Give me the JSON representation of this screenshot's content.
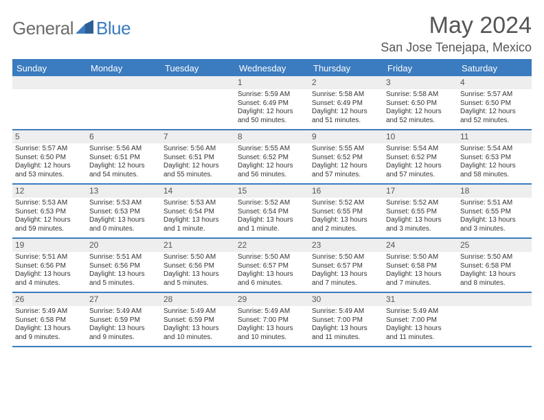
{
  "brand": {
    "part1": "General",
    "part2": "Blue"
  },
  "title": "May 2024",
  "location": "San Jose Tenejapa, Mexico",
  "colors": {
    "accent": "#3b7bbf",
    "header_bg": "#3b7bbf",
    "daynum_bg": "#eeeeee",
    "text": "#333333",
    "title_text": "#555555",
    "page_bg": "#ffffff"
  },
  "typography": {
    "title_fontsize": 34,
    "location_fontsize": 18,
    "weekday_fontsize": 13,
    "daynum_fontsize": 12,
    "body_fontsize": 10,
    "font_family": "Arial"
  },
  "weekdays": [
    "Sunday",
    "Monday",
    "Tuesday",
    "Wednesday",
    "Thursday",
    "Friday",
    "Saturday"
  ],
  "weeks": [
    [
      {
        "n": "",
        "empty": true
      },
      {
        "n": "",
        "empty": true
      },
      {
        "n": "",
        "empty": true
      },
      {
        "n": "1",
        "sr": "Sunrise: 5:59 AM",
        "ss": "Sunset: 6:49 PM",
        "d1": "Daylight: 12 hours",
        "d2": "and 50 minutes."
      },
      {
        "n": "2",
        "sr": "Sunrise: 5:58 AM",
        "ss": "Sunset: 6:49 PM",
        "d1": "Daylight: 12 hours",
        "d2": "and 51 minutes."
      },
      {
        "n": "3",
        "sr": "Sunrise: 5:58 AM",
        "ss": "Sunset: 6:50 PM",
        "d1": "Daylight: 12 hours",
        "d2": "and 52 minutes."
      },
      {
        "n": "4",
        "sr": "Sunrise: 5:57 AM",
        "ss": "Sunset: 6:50 PM",
        "d1": "Daylight: 12 hours",
        "d2": "and 52 minutes."
      }
    ],
    [
      {
        "n": "5",
        "sr": "Sunrise: 5:57 AM",
        "ss": "Sunset: 6:50 PM",
        "d1": "Daylight: 12 hours",
        "d2": "and 53 minutes."
      },
      {
        "n": "6",
        "sr": "Sunrise: 5:56 AM",
        "ss": "Sunset: 6:51 PM",
        "d1": "Daylight: 12 hours",
        "d2": "and 54 minutes."
      },
      {
        "n": "7",
        "sr": "Sunrise: 5:56 AM",
        "ss": "Sunset: 6:51 PM",
        "d1": "Daylight: 12 hours",
        "d2": "and 55 minutes."
      },
      {
        "n": "8",
        "sr": "Sunrise: 5:55 AM",
        "ss": "Sunset: 6:52 PM",
        "d1": "Daylight: 12 hours",
        "d2": "and 56 minutes."
      },
      {
        "n": "9",
        "sr": "Sunrise: 5:55 AM",
        "ss": "Sunset: 6:52 PM",
        "d1": "Daylight: 12 hours",
        "d2": "and 57 minutes."
      },
      {
        "n": "10",
        "sr": "Sunrise: 5:54 AM",
        "ss": "Sunset: 6:52 PM",
        "d1": "Daylight: 12 hours",
        "d2": "and 57 minutes."
      },
      {
        "n": "11",
        "sr": "Sunrise: 5:54 AM",
        "ss": "Sunset: 6:53 PM",
        "d1": "Daylight: 12 hours",
        "d2": "and 58 minutes."
      }
    ],
    [
      {
        "n": "12",
        "sr": "Sunrise: 5:53 AM",
        "ss": "Sunset: 6:53 PM",
        "d1": "Daylight: 12 hours",
        "d2": "and 59 minutes."
      },
      {
        "n": "13",
        "sr": "Sunrise: 5:53 AM",
        "ss": "Sunset: 6:53 PM",
        "d1": "Daylight: 13 hours",
        "d2": "and 0 minutes."
      },
      {
        "n": "14",
        "sr": "Sunrise: 5:53 AM",
        "ss": "Sunset: 6:54 PM",
        "d1": "Daylight: 13 hours",
        "d2": "and 1 minute."
      },
      {
        "n": "15",
        "sr": "Sunrise: 5:52 AM",
        "ss": "Sunset: 6:54 PM",
        "d1": "Daylight: 13 hours",
        "d2": "and 1 minute."
      },
      {
        "n": "16",
        "sr": "Sunrise: 5:52 AM",
        "ss": "Sunset: 6:55 PM",
        "d1": "Daylight: 13 hours",
        "d2": "and 2 minutes."
      },
      {
        "n": "17",
        "sr": "Sunrise: 5:52 AM",
        "ss": "Sunset: 6:55 PM",
        "d1": "Daylight: 13 hours",
        "d2": "and 3 minutes."
      },
      {
        "n": "18",
        "sr": "Sunrise: 5:51 AM",
        "ss": "Sunset: 6:55 PM",
        "d1": "Daylight: 13 hours",
        "d2": "and 3 minutes."
      }
    ],
    [
      {
        "n": "19",
        "sr": "Sunrise: 5:51 AM",
        "ss": "Sunset: 6:56 PM",
        "d1": "Daylight: 13 hours",
        "d2": "and 4 minutes."
      },
      {
        "n": "20",
        "sr": "Sunrise: 5:51 AM",
        "ss": "Sunset: 6:56 PM",
        "d1": "Daylight: 13 hours",
        "d2": "and 5 minutes."
      },
      {
        "n": "21",
        "sr": "Sunrise: 5:50 AM",
        "ss": "Sunset: 6:56 PM",
        "d1": "Daylight: 13 hours",
        "d2": "and 5 minutes."
      },
      {
        "n": "22",
        "sr": "Sunrise: 5:50 AM",
        "ss": "Sunset: 6:57 PM",
        "d1": "Daylight: 13 hours",
        "d2": "and 6 minutes."
      },
      {
        "n": "23",
        "sr": "Sunrise: 5:50 AM",
        "ss": "Sunset: 6:57 PM",
        "d1": "Daylight: 13 hours",
        "d2": "and 7 minutes."
      },
      {
        "n": "24",
        "sr": "Sunrise: 5:50 AM",
        "ss": "Sunset: 6:58 PM",
        "d1": "Daylight: 13 hours",
        "d2": "and 7 minutes."
      },
      {
        "n": "25",
        "sr": "Sunrise: 5:50 AM",
        "ss": "Sunset: 6:58 PM",
        "d1": "Daylight: 13 hours",
        "d2": "and 8 minutes."
      }
    ],
    [
      {
        "n": "26",
        "sr": "Sunrise: 5:49 AM",
        "ss": "Sunset: 6:58 PM",
        "d1": "Daylight: 13 hours",
        "d2": "and 9 minutes."
      },
      {
        "n": "27",
        "sr": "Sunrise: 5:49 AM",
        "ss": "Sunset: 6:59 PM",
        "d1": "Daylight: 13 hours",
        "d2": "and 9 minutes."
      },
      {
        "n": "28",
        "sr": "Sunrise: 5:49 AM",
        "ss": "Sunset: 6:59 PM",
        "d1": "Daylight: 13 hours",
        "d2": "and 10 minutes."
      },
      {
        "n": "29",
        "sr": "Sunrise: 5:49 AM",
        "ss": "Sunset: 7:00 PM",
        "d1": "Daylight: 13 hours",
        "d2": "and 10 minutes."
      },
      {
        "n": "30",
        "sr": "Sunrise: 5:49 AM",
        "ss": "Sunset: 7:00 PM",
        "d1": "Daylight: 13 hours",
        "d2": "and 11 minutes."
      },
      {
        "n": "31",
        "sr": "Sunrise: 5:49 AM",
        "ss": "Sunset: 7:00 PM",
        "d1": "Daylight: 13 hours",
        "d2": "and 11 minutes."
      },
      {
        "n": "",
        "empty": true
      }
    ]
  ]
}
